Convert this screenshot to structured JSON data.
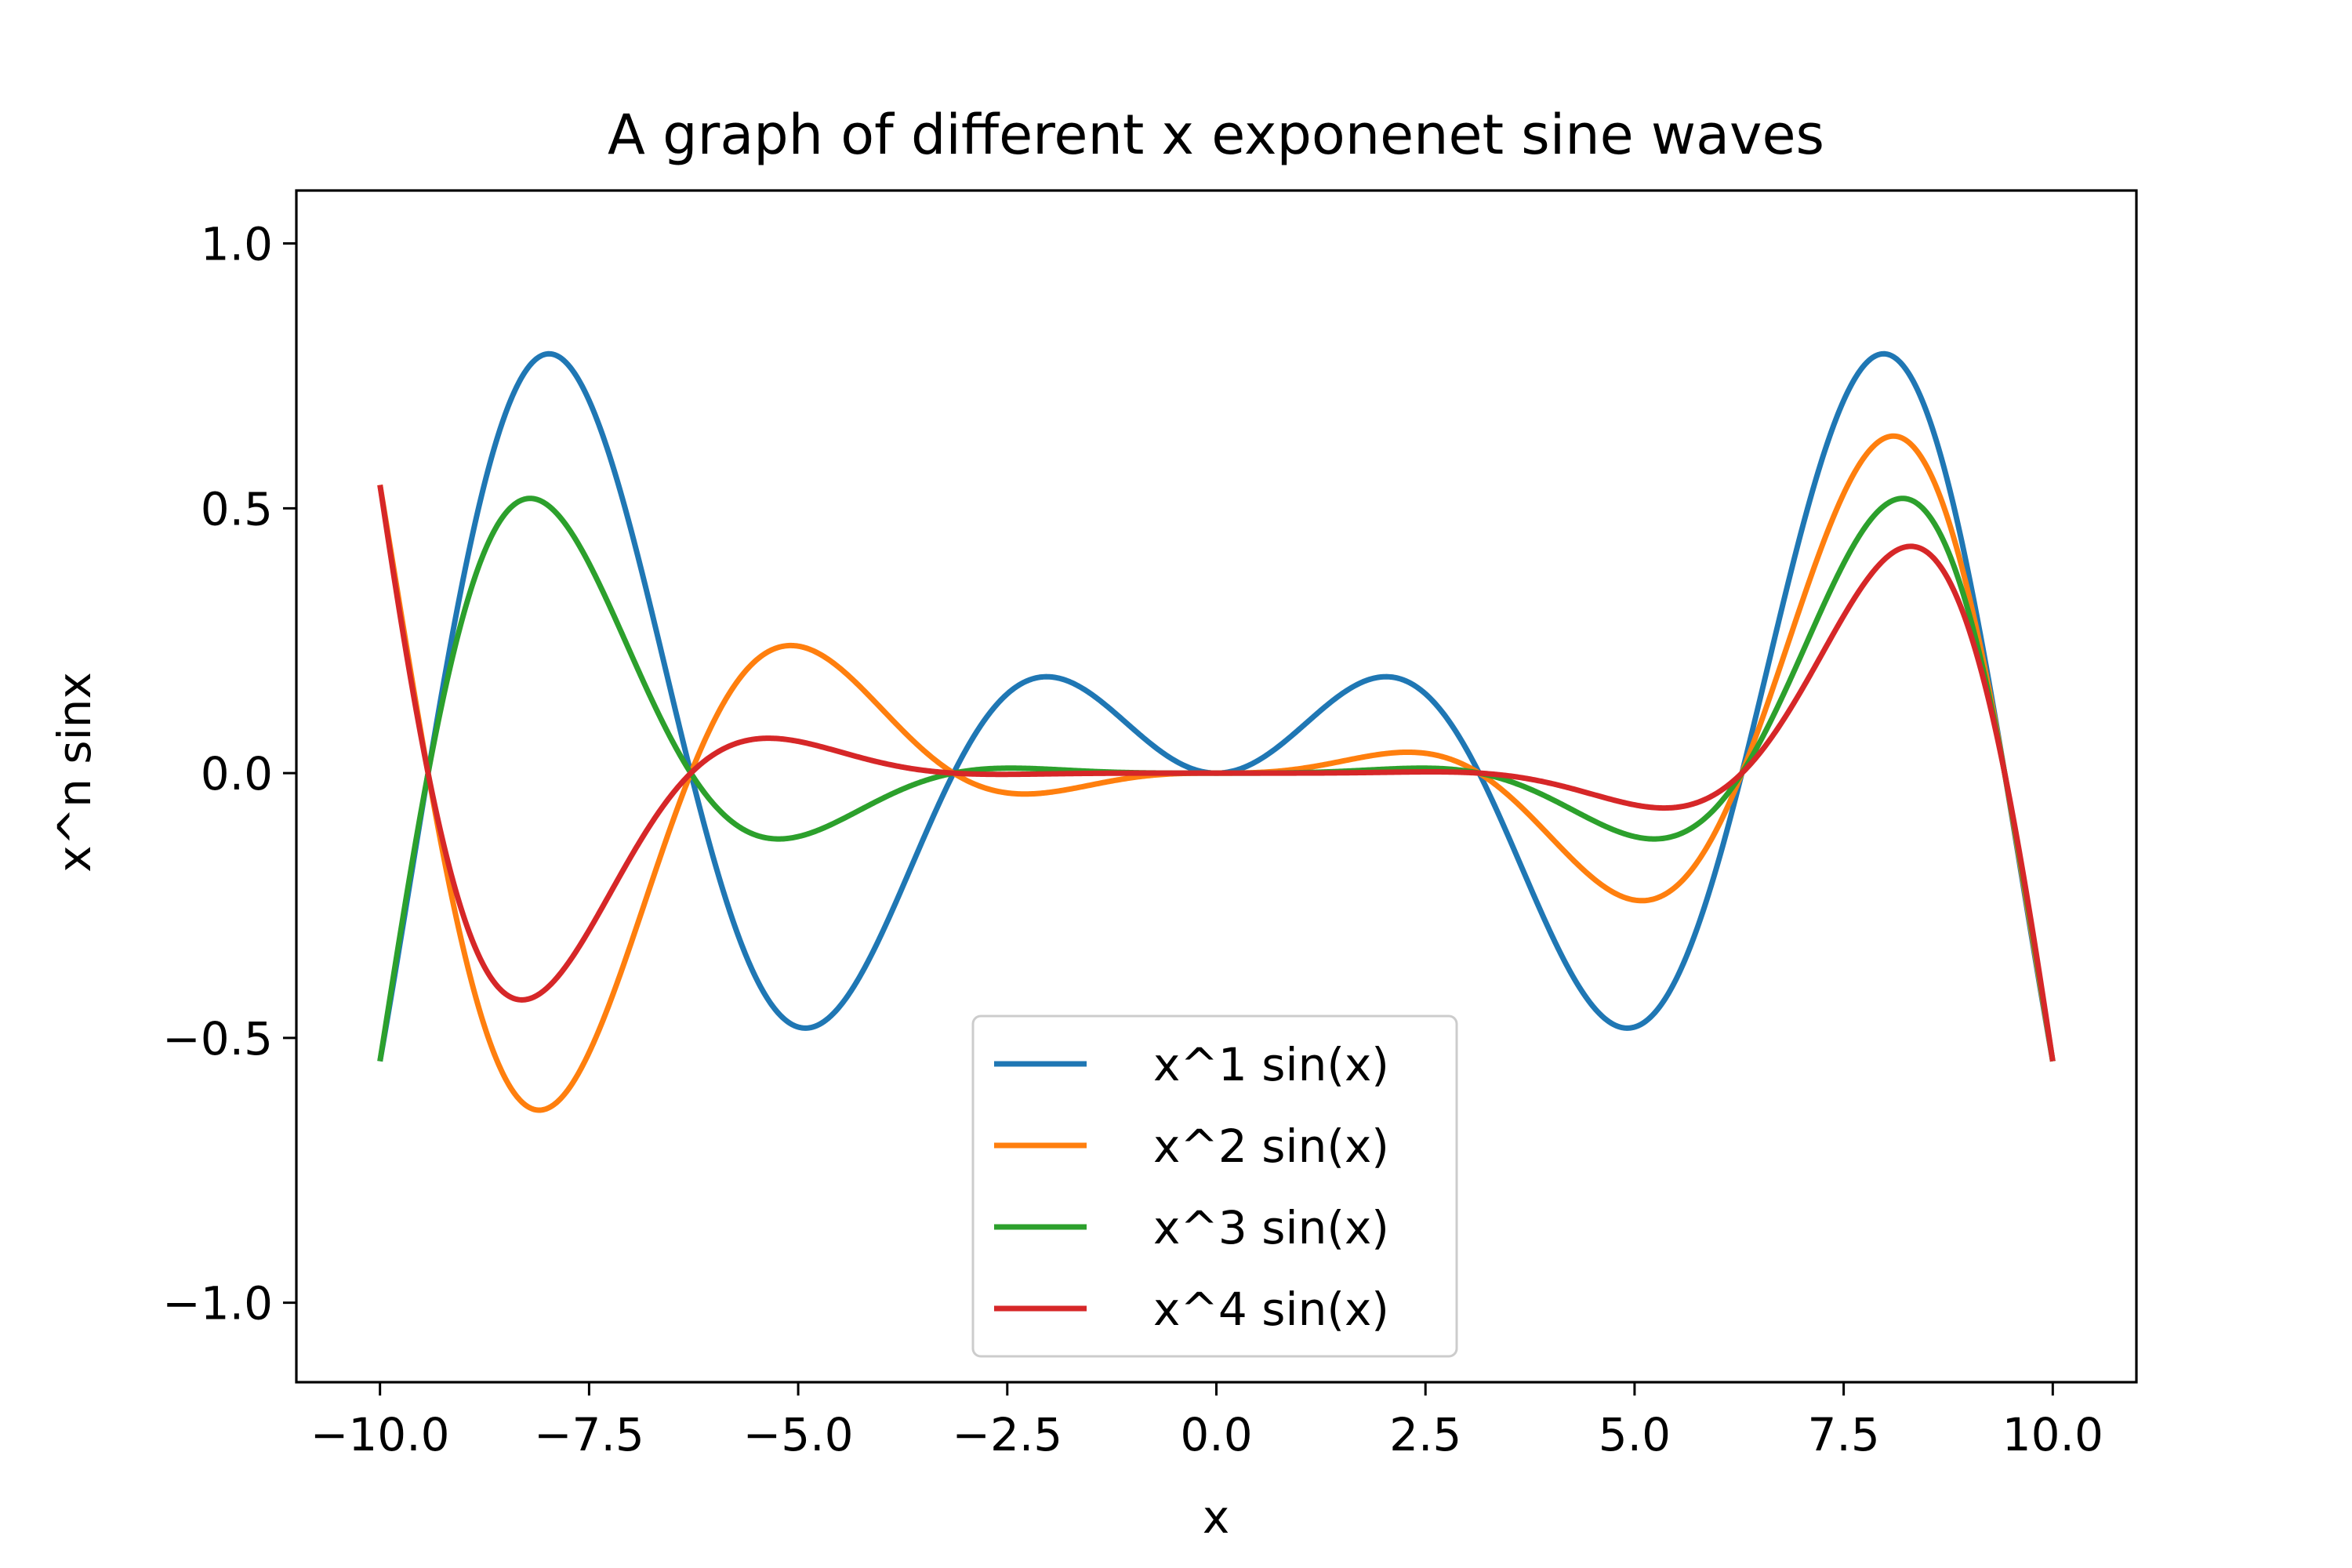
{
  "chart_data": {
    "type": "line",
    "title": "A graph of different x exponenet sine waves",
    "xlabel": "x",
    "ylabel": "x^n sinx",
    "xlim": [
      -11,
      11
    ],
    "ylim": [
      -1.15,
      1.1
    ],
    "x_ticks": [
      -10.0,
      -7.5,
      -5.0,
      -2.5,
      0.0,
      2.5,
      5.0,
      7.5,
      10.0
    ],
    "x_tick_labels": [
      "−10.0",
      "−7.5",
      "−5.0",
      "−2.5",
      "0.0",
      "2.5",
      "5.0",
      "7.5",
      "10.0"
    ],
    "y_ticks": [
      -1.0,
      -0.5,
      0.0,
      0.5,
      1.0
    ],
    "y_tick_labels": [
      "−1.0",
      "−0.5",
      "0.0",
      "0.5",
      "1.0"
    ],
    "grid": false,
    "legend_position": "lower center",
    "x_domain": [
      -10,
      10
    ],
    "series": [
      {
        "name": "x^1 sin(x)",
        "exponent": 1,
        "color": "#1f77b4"
      },
      {
        "name": "x^2 sin(x)",
        "exponent": 2,
        "color": "#ff7f0e"
      },
      {
        "name": "x^3 sin(x)",
        "exponent": 3,
        "color": "#2ca02c"
      },
      {
        "name": "x^4 sin(x)",
        "exponent": 4,
        "color": "#d62728"
      }
    ]
  }
}
